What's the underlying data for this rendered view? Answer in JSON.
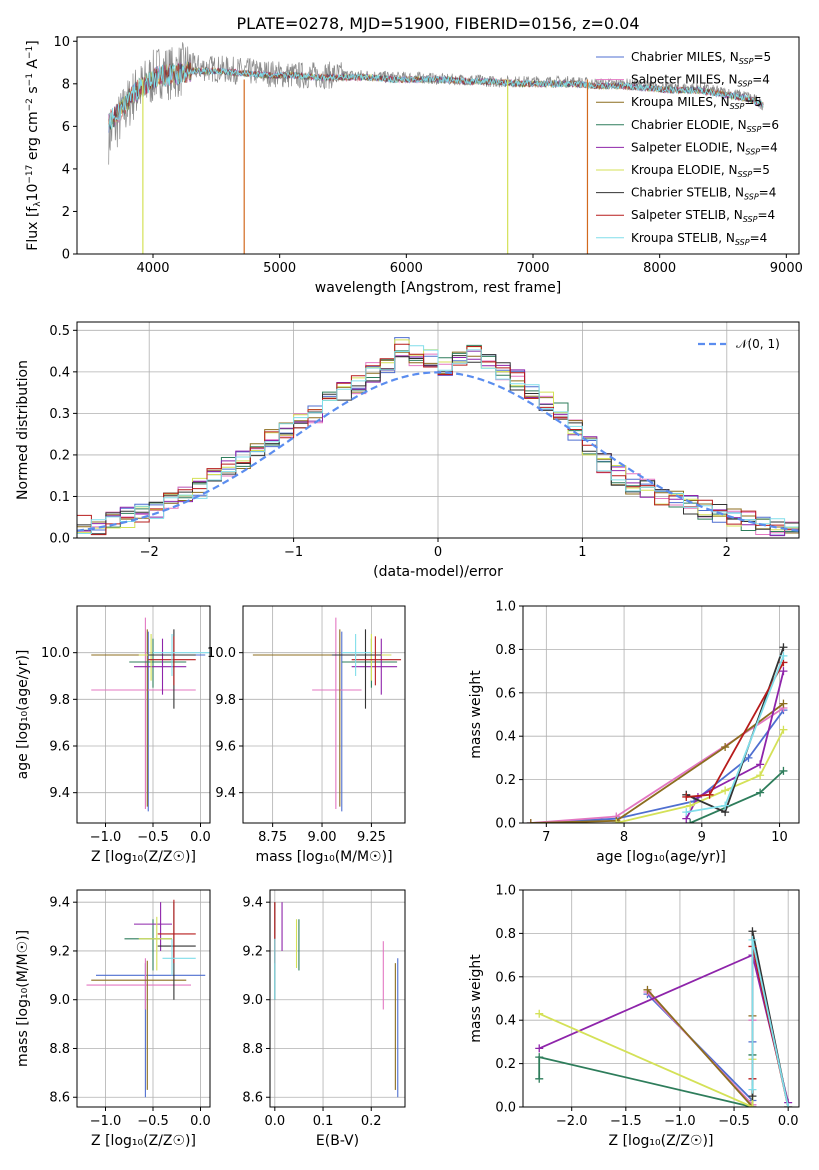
{
  "title": "PLATE=0278, MJD=51900, FIBERID=0156, z=0.04",
  "colors": {
    "Chabrier MILES": "#4f6fd0",
    "Salpeter MILES": "#e377c2",
    "Kroupa MILES": "#8c6d1f",
    "Chabrier ELODIE": "#2e7d5b",
    "Salpeter ELODIE": "#8e24aa",
    "Kroupa ELODIE": "#d4e157",
    "Chabrier STELIB": "#333333",
    "Salpeter STELIB": "#b71c1c",
    "Kroupa STELIB": "#80deea"
  },
  "legend_spectrum": [
    {
      "name": "Chabrier MILES",
      "pre": "Chabrier MILES, N",
      "sub": "SSP",
      "post": "=5"
    },
    {
      "name": "Salpeter MILES",
      "pre": "Salpeter MILES, N",
      "sub": "SSP",
      "post": "=4"
    },
    {
      "name": "Kroupa MILES",
      "pre": "Kroupa MILES, N",
      "sub": "SSP",
      "post": "=5"
    },
    {
      "name": "Chabrier ELODIE",
      "pre": "Chabrier ELODIE, N",
      "sub": "SSP",
      "post": "=6"
    },
    {
      "name": "Salpeter ELODIE",
      "pre": "Salpeter ELODIE, N",
      "sub": "SSP",
      "post": "=4"
    },
    {
      "name": "Kroupa ELODIE",
      "pre": "Kroupa ELODIE, N",
      "sub": "SSP",
      "post": "=5"
    },
    {
      "name": "Chabrier STELIB",
      "pre": "Chabrier STELIB, N",
      "sub": "SSP",
      "post": "=4"
    },
    {
      "name": "Salpeter STELIB",
      "pre": "Salpeter STELIB, N",
      "sub": "SSP",
      "post": "=4"
    },
    {
      "name": "Kroupa STELIB",
      "pre": "Kroupa STELIB, N",
      "sub": "SSP",
      "post": "=4"
    }
  ],
  "chart_data": [
    {
      "id": "spectrum",
      "type": "line",
      "xlabel": "wavelength [Angstrom, rest frame]",
      "ylabel_parts": {
        "pre": "Flux [f",
        "sub": "λ",
        "mid": "10",
        "sup1": "−17",
        "post": " erg cm",
        "sup2": "−2",
        "post2": " s",
        "sup3": "−1",
        "post3": " A",
        "sup4": "−1",
        "end": "]"
      },
      "xlim": [
        3400,
        9100
      ],
      "ylim": [
        0,
        10.2
      ],
      "xticks": [
        4000,
        5000,
        6000,
        7000,
        8000,
        9000
      ],
      "yticks": [
        0,
        2,
        4,
        6,
        8,
        10
      ],
      "grid": false,
      "legend": "top-right",
      "series": [
        {
          "name": "data",
          "x": [
            3650,
            3750,
            3850,
            3950,
            4050,
            4150,
            4300,
            4500,
            4700,
            4900,
            5100,
            5300,
            5500,
            5700,
            5900,
            6100,
            6300,
            6500,
            6700,
            6900,
            7100,
            7300,
            7500,
            7700,
            7900,
            8100,
            8300,
            8500,
            8700,
            8820
          ],
          "y": [
            5.5,
            6.5,
            7.5,
            8.0,
            8.6,
            8.5,
            8.8,
            8.7,
            8.6,
            8.5,
            8.4,
            8.4,
            8.4,
            8.4,
            8.3,
            8.3,
            8.2,
            8.2,
            8.1,
            8.1,
            8.1,
            8.1,
            8.0,
            8.0,
            7.9,
            7.8,
            7.8,
            7.6,
            7.4,
            7.0
          ]
        },
        {
          "name": "model",
          "x": [
            3650,
            3750,
            3850,
            3950,
            4050,
            4150,
            4300,
            4500,
            4700,
            4900,
            5100,
            5300,
            5500,
            5700,
            5900,
            6100,
            6300,
            6500,
            6700,
            6900,
            7100,
            7300,
            7500,
            7700,
            7900,
            8100,
            8300,
            8500,
            8700,
            8820
          ],
          "y": [
            6.2,
            6.8,
            7.6,
            8.0,
            8.4,
            8.4,
            8.6,
            8.6,
            8.5,
            8.4,
            8.4,
            8.3,
            8.3,
            8.3,
            8.2,
            8.2,
            8.2,
            8.1,
            8.1,
            8.0,
            8.0,
            8.0,
            7.9,
            7.9,
            7.8,
            7.7,
            7.7,
            7.5,
            7.3,
            7.0
          ]
        }
      ]
    },
    {
      "id": "residuals",
      "type": "histogram",
      "xlabel": "(data-model)/error",
      "ylabel": "Normed distribution",
      "xlim": [
        -2.5,
        2.5
      ],
      "ylim": [
        0,
        0.52
      ],
      "xticks": [
        -2,
        -1,
        0,
        1,
        2
      ],
      "yticks": [
        0.0,
        0.1,
        0.2,
        0.3,
        0.4,
        0.5
      ],
      "grid": true,
      "legend": "top-right",
      "gaussian_label": "𝒩(0, 1)",
      "bin_width": 0.1,
      "values": [
        0.03,
        0.03,
        0.04,
        0.05,
        0.06,
        0.07,
        0.09,
        0.1,
        0.12,
        0.15,
        0.17,
        0.19,
        0.22,
        0.24,
        0.26,
        0.28,
        0.3,
        0.33,
        0.35,
        0.37,
        0.4,
        0.42,
        0.46,
        0.44,
        0.43,
        0.41,
        0.43,
        0.44,
        0.42,
        0.4,
        0.38,
        0.35,
        0.33,
        0.3,
        0.26,
        0.22,
        0.18,
        0.15,
        0.13,
        0.12,
        0.1,
        0.09,
        0.08,
        0.07,
        0.06,
        0.05,
        0.04,
        0.03,
        0.03,
        0.03
      ]
    },
    {
      "id": "age-vs-Z",
      "type": "errorbar",
      "xlabel": "Z [log₁₀(Z/Z☉)]",
      "ylabel": "age  [log₁₀(age/yr)]",
      "xlim": [
        -1.3,
        0.1
      ],
      "ylim": [
        9.27,
        10.2
      ],
      "xticks": [
        -1.0,
        -0.5,
        0.0
      ],
      "yticks": [
        9.4,
        9.6,
        9.8,
        10.0
      ],
      "grid": true,
      "points": [
        {
          "s": "Chabrier MILES",
          "x": -0.55,
          "y": 9.99,
          "xl": -0.72,
          "xh": 0.05,
          "yl": 9.32,
          "yh": 10.09
        },
        {
          "s": "Salpeter MILES",
          "x": -0.58,
          "y": 9.84,
          "xl": -1.15,
          "xh": -0.05,
          "yl": 9.33,
          "yh": 10.15
        },
        {
          "s": "Kroupa MILES",
          "x": -0.56,
          "y": 9.99,
          "xl": -1.15,
          "xh": -0.1,
          "yl": 9.34,
          "yh": 10.1
        },
        {
          "s": "Chabrier ELODIE",
          "x": -0.5,
          "y": 9.96,
          "xl": -0.75,
          "xh": -0.15,
          "yl": 9.85,
          "yh": 10.06
        },
        {
          "s": "Salpeter ELODIE",
          "x": -0.4,
          "y": 9.94,
          "xl": -0.7,
          "xh": -0.15,
          "yl": 9.82,
          "yh": 10.06
        },
        {
          "s": "Kroupa ELODIE",
          "x": -0.52,
          "y": 9.99,
          "xl": -0.65,
          "xh": -0.35,
          "yl": 9.88,
          "yh": 10.08
        },
        {
          "s": "Chabrier STELIB",
          "x": -0.28,
          "y": 9.99,
          "xl": -0.55,
          "xh": -0.05,
          "yl": 9.76,
          "yh": 10.1
        },
        {
          "s": "Salpeter STELIB",
          "x": -0.28,
          "y": 9.97,
          "xl": -0.55,
          "xh": -0.05,
          "yl": 9.86,
          "yh": 10.07
        },
        {
          "s": "Kroupa STELIB",
          "x": -0.3,
          "y": 10.0,
          "xl": -0.5,
          "xh": 0.1,
          "yl": 9.9,
          "yh": 10.08
        }
      ]
    },
    {
      "id": "age-vs-mass",
      "type": "errorbar",
      "xlabel": "mass [log₁₀(M/M☉)]",
      "xlim": [
        8.6,
        9.42
      ],
      "ylim": [
        9.27,
        10.2
      ],
      "xticks": [
        8.75,
        9.0,
        9.25
      ],
      "yticks": [
        9.4,
        9.6,
        9.8,
        10.0
      ],
      "grid": true,
      "points": [
        {
          "s": "Chabrier MILES",
          "x": 9.1,
          "y": 9.99,
          "xl": 9.0,
          "xh": 9.2,
          "yl": 9.32,
          "yh": 10.09
        },
        {
          "s": "Salpeter MILES",
          "x": 9.07,
          "y": 9.84,
          "xl": 8.95,
          "xh": 9.2,
          "yl": 9.33,
          "yh": 10.15
        },
        {
          "s": "Kroupa MILES",
          "x": 9.09,
          "y": 9.99,
          "xl": 8.65,
          "xh": 9.35,
          "yl": 9.34,
          "yh": 10.1
        },
        {
          "s": "Chabrier ELODIE",
          "x": 9.25,
          "y": 9.96,
          "xl": 9.1,
          "xh": 9.38,
          "yl": 9.85,
          "yh": 10.06
        },
        {
          "s": "Salpeter ELODIE",
          "x": 9.3,
          "y": 9.94,
          "xl": 9.15,
          "xh": 9.38,
          "yl": 9.82,
          "yh": 10.06
        },
        {
          "s": "Kroupa ELODIE",
          "x": 9.25,
          "y": 9.99,
          "xl": 9.15,
          "xh": 9.35,
          "yl": 9.88,
          "yh": 10.08
        },
        {
          "s": "Chabrier STELIB",
          "x": 9.22,
          "y": 9.99,
          "xl": 9.05,
          "xh": 9.3,
          "yl": 9.76,
          "yh": 10.1
        },
        {
          "s": "Salpeter STELIB",
          "x": 9.27,
          "y": 9.97,
          "xl": 9.15,
          "xh": 9.4,
          "yl": 9.86,
          "yh": 10.07
        },
        {
          "s": "Kroupa STELIB",
          "x": 9.17,
          "y": 10.0,
          "xl": 9.1,
          "xh": 9.25,
          "yl": 9.9,
          "yh": 10.08
        }
      ]
    },
    {
      "id": "weight-vs-age",
      "type": "line",
      "xlabel": "age  [log₁₀(age/yr)]",
      "ylabel": "mass weight",
      "xlim": [
        6.7,
        10.25
      ],
      "ylim": [
        0,
        1.0
      ],
      "xticks": [
        7,
        8,
        9,
        10
      ],
      "yticks": [
        0.0,
        0.2,
        0.4,
        0.6,
        0.8,
        1.0
      ],
      "grid": true,
      "series": [
        {
          "name": "Chabrier MILES",
          "x": [
            6.8,
            7.9,
            8.9,
            9.6,
            10.05
          ],
          "y": [
            0.0,
            0.02,
            0.1,
            0.3,
            0.52
          ]
        },
        {
          "name": "Salpeter MILES",
          "x": [
            6.8,
            7.9,
            10.05
          ],
          "y": [
            0.0,
            0.03,
            0.53
          ]
        },
        {
          "name": "Kroupa MILES",
          "x": [
            6.8,
            7.9,
            9.3,
            10.05
          ],
          "y": [
            0.0,
            0.01,
            0.35,
            0.55
          ]
        },
        {
          "name": "Chabrier ELODIE",
          "x": [
            8.85,
            9.75,
            10.05
          ],
          "y": [
            0.0,
            0.14,
            0.24
          ]
        },
        {
          "name": "Salpeter ELODIE",
          "x": [
            8.8,
            8.95,
            9.75,
            10.05
          ],
          "y": [
            0.02,
            0.12,
            0.27,
            0.7
          ]
        },
        {
          "name": "Kroupa ELODIE",
          "x": [
            7.9,
            8.85,
            9.3,
            9.75,
            10.05
          ],
          "y": [
            0.0,
            0.08,
            0.15,
            0.22,
            0.43
          ]
        },
        {
          "name": "Chabrier STELIB",
          "x": [
            8.8,
            9.3,
            10.05
          ],
          "y": [
            0.13,
            0.05,
            0.81
          ]
        },
        {
          "name": "Salpeter STELIB",
          "x": [
            8.8,
            9.1,
            10.05
          ],
          "y": [
            0.12,
            0.13,
            0.74
          ]
        },
        {
          "name": "Kroupa STELIB",
          "x": [
            8.8,
            9.3,
            10.05
          ],
          "y": [
            0.05,
            0.08,
            0.77
          ]
        }
      ]
    },
    {
      "id": "mass-vs-Z",
      "type": "errorbar",
      "xlabel": "Z [log₁₀(Z/Z☉)]",
      "ylabel": "mass [log₁₀(M/M☉)]",
      "xlim": [
        -1.3,
        0.1
      ],
      "ylim": [
        8.56,
        9.45
      ],
      "xticks": [
        -1.0,
        -0.5,
        0.0
      ],
      "yticks": [
        8.6,
        8.8,
        9.0,
        9.2,
        9.4
      ],
      "grid": true,
      "points": [
        {
          "s": "Chabrier MILES",
          "x": -0.58,
          "y": 9.1,
          "xl": -1.1,
          "xh": 0.05,
          "yl": 8.6,
          "yh": 9.15
        },
        {
          "s": "Salpeter MILES",
          "x": -0.58,
          "y": 9.06,
          "xl": -1.2,
          "xh": -0.1,
          "yl": 8.96,
          "yh": 9.17
        },
        {
          "s": "Kroupa MILES",
          "x": -0.56,
          "y": 9.08,
          "xl": -1.15,
          "xh": -0.15,
          "yl": 8.63,
          "yh": 9.16
        },
        {
          "s": "Chabrier ELODIE",
          "x": -0.5,
          "y": 9.25,
          "xl": -0.8,
          "xh": -0.3,
          "yl": 9.12,
          "yh": 9.33
        },
        {
          "s": "Salpeter ELODIE",
          "x": -0.42,
          "y": 9.31,
          "xl": -0.7,
          "xh": -0.3,
          "yl": 9.2,
          "yh": 9.4
        },
        {
          "s": "Kroupa ELODIE",
          "x": -0.46,
          "y": 9.25,
          "xl": -0.65,
          "xh": -0.3,
          "yl": 9.12,
          "yh": 9.34
        },
        {
          "s": "Chabrier STELIB",
          "x": -0.28,
          "y": 9.22,
          "xl": -0.45,
          "xh": -0.05,
          "yl": 9.0,
          "yh": 9.4
        },
        {
          "s": "Salpeter STELIB",
          "x": -0.28,
          "y": 9.27,
          "xl": -0.45,
          "xh": -0.05,
          "yl": 9.15,
          "yh": 9.41
        },
        {
          "s": "Kroupa STELIB",
          "x": -0.3,
          "y": 9.17,
          "xl": -0.4,
          "xh": -0.05,
          "yl": 9.1,
          "yh": 9.25
        }
      ]
    },
    {
      "id": "mass-vs-ebv",
      "type": "errorbar",
      "xlabel": "E(B-V)",
      "xlim": [
        -0.01,
        0.27
      ],
      "ylim": [
        8.56,
        9.45
      ],
      "xticks": [
        0.0,
        0.1,
        0.2
      ],
      "yticks": [
        8.6,
        8.8,
        9.0,
        9.2,
        9.4
      ],
      "grid": true,
      "points": [
        {
          "s": "Chabrier MILES",
          "x": 0.255,
          "y": 9.1,
          "yl": 8.6,
          "yh": 9.17
        },
        {
          "s": "Salpeter MILES",
          "x": 0.225,
          "y": 9.1,
          "yl": 8.96,
          "yh": 9.24
        },
        {
          "s": "Kroupa MILES",
          "x": 0.25,
          "y": 9.08,
          "yl": 8.63,
          "yh": 9.15
        },
        {
          "s": "Chabrier ELODIE",
          "x": 0.05,
          "y": 9.25,
          "yl": 9.12,
          "yh": 9.33
        },
        {
          "s": "Salpeter ELODIE",
          "x": 0.015,
          "y": 9.31,
          "yl": 9.2,
          "yh": 9.4
        },
        {
          "s": "Kroupa ELODIE",
          "x": 0.045,
          "y": 9.25,
          "yl": 9.13,
          "yh": 9.33
        },
        {
          "s": "Chabrier STELIB",
          "x": 0.0,
          "y": 9.22,
          "yl": 9.0,
          "yh": 9.4
        },
        {
          "s": "Salpeter STELIB",
          "x": 0.0,
          "y": 9.27,
          "yl": 9.15,
          "yh": 9.4
        },
        {
          "s": "Kroupa STELIB",
          "x": 0.0,
          "y": 9.17,
          "yl": 9.0,
          "yh": 9.25
        }
      ]
    },
    {
      "id": "weight-vs-Z",
      "type": "line",
      "xlabel": "Z [log₁₀(Z/Z☉)]",
      "ylabel": "mass weight",
      "xlim": [
        -2.45,
        0.1
      ],
      "ylim": [
        0,
        1.0
      ],
      "xticks": [
        -2.0,
        -1.5,
        -1.0,
        -0.5,
        0.0
      ],
      "yticks": [
        0.0,
        0.2,
        0.4,
        0.6,
        0.8,
        1.0
      ],
      "grid": true,
      "series": [
        {
          "name": "Chabrier MILES",
          "x": [
            -1.3,
            -0.33,
            -0.33
          ],
          "y": [
            0.52,
            0.03,
            0.3
          ]
        },
        {
          "name": "Salpeter MILES",
          "x": [
            -1.3,
            -0.33,
            -0.33
          ],
          "y": [
            0.53,
            0.01,
            0.4
          ]
        },
        {
          "name": "Kroupa MILES",
          "x": [
            -1.3,
            -0.33,
            -0.33
          ],
          "y": [
            0.54,
            0.0,
            0.42
          ]
        },
        {
          "name": "Chabrier ELODIE",
          "x": [
            -2.3,
            -2.3,
            -0.33,
            -0.33
          ],
          "y": [
            0.13,
            0.23,
            0.0,
            0.24
          ]
        },
        {
          "name": "Salpeter ELODIE",
          "x": [
            -2.3,
            -0.33,
            0.0
          ],
          "y": [
            0.27,
            0.7,
            0.02
          ]
        },
        {
          "name": "Kroupa ELODIE",
          "x": [
            -2.3,
            -0.33,
            -0.33
          ],
          "y": [
            0.43,
            0.0,
            0.22
          ]
        },
        {
          "name": "Chabrier STELIB",
          "x": [
            -0.33,
            -0.33,
            0.0
          ],
          "y": [
            0.05,
            0.81,
            0.0
          ]
        },
        {
          "name": "Salpeter STELIB",
          "x": [
            -0.33,
            -0.33,
            0.0
          ],
          "y": [
            0.13,
            0.74,
            0.0
          ]
        },
        {
          "name": "Kroupa STELIB",
          "x": [
            -0.33,
            -0.33,
            0.0
          ],
          "y": [
            0.08,
            0.77,
            0.0
          ]
        }
      ]
    }
  ]
}
